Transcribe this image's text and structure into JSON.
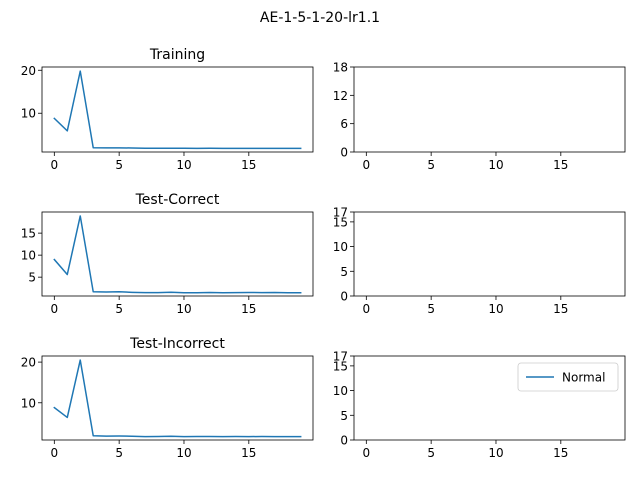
{
  "figure": {
    "suptitle": "AE-1-5-1-20-lr1.1"
  },
  "colors": {
    "series": "#1f77b4",
    "axes": "#000000",
    "background": "#ffffff"
  },
  "chart_data": [
    {
      "type": "line",
      "title": "Training",
      "xlabel": "",
      "ylabel": "",
      "xlim": [
        -0.95,
        19.95
      ],
      "ylim": [
        0.98,
        20.76
      ],
      "xticks": [
        0,
        5,
        10,
        15
      ],
      "yticks": [
        10,
        20
      ],
      "grid": false,
      "series": [
        {
          "x": [
            0,
            1,
            2,
            3,
            4,
            5,
            6,
            7,
            8,
            9,
            10,
            11,
            12,
            13,
            14,
            15,
            16,
            17,
            18,
            19
          ],
          "values": [
            8.8,
            5.9,
            19.8,
            1.98,
            1.93,
            1.95,
            1.91,
            1.85,
            1.86,
            1.85,
            1.86,
            1.83,
            1.84,
            1.82,
            1.83,
            1.82,
            1.83,
            1.82,
            1.82,
            1.81
          ]
        }
      ]
    },
    {
      "type": "line",
      "title": "",
      "xlabel": "",
      "ylabel": "",
      "xlim": [
        -0.95,
        19.95
      ],
      "ylim": [
        0,
        18
      ],
      "xticks": [
        0,
        5,
        10,
        15
      ],
      "yticks": [
        0,
        6,
        12,
        18
      ],
      "grid": false,
      "series": []
    },
    {
      "type": "line",
      "title": "Test-Correct",
      "xlabel": "",
      "ylabel": "",
      "xlim": [
        -0.95,
        19.95
      ],
      "ylim": [
        0.72,
        19.8
      ],
      "xticks": [
        0,
        5,
        10,
        15
      ],
      "yticks": [
        5,
        10,
        15
      ],
      "grid": false,
      "series": [
        {
          "x": [
            0,
            1,
            2,
            3,
            4,
            5,
            6,
            7,
            8,
            9,
            10,
            11,
            12,
            13,
            14,
            15,
            16,
            17,
            18,
            19
          ],
          "values": [
            9.0,
            5.6,
            18.9,
            1.7,
            1.62,
            1.68,
            1.55,
            1.48,
            1.5,
            1.58,
            1.46,
            1.47,
            1.52,
            1.46,
            1.48,
            1.52,
            1.48,
            1.51,
            1.46,
            1.45
          ]
        }
      ]
    },
    {
      "type": "line",
      "title": "",
      "xlabel": "",
      "ylabel": "",
      "xlim": [
        -0.95,
        19.95
      ],
      "ylim": [
        0,
        17
      ],
      "xticks": [
        0,
        5,
        10,
        15
      ],
      "yticks": [
        0,
        5,
        10,
        15,
        17
      ],
      "grid": false,
      "series": []
    },
    {
      "type": "line",
      "title": "Test-Incorrect",
      "xlabel": "",
      "ylabel": "",
      "xlim": [
        -0.95,
        19.95
      ],
      "ylim": [
        0.85,
        21.5
      ],
      "xticks": [
        0,
        5,
        10,
        15
      ],
      "yticks": [
        10,
        20
      ],
      "grid": false,
      "series": [
        {
          "x": [
            0,
            1,
            2,
            3,
            4,
            5,
            6,
            7,
            8,
            9,
            10,
            11,
            12,
            13,
            14,
            15,
            16,
            17,
            18,
            19
          ],
          "values": [
            8.8,
            6.4,
            20.5,
            1.9,
            1.8,
            1.82,
            1.78,
            1.68,
            1.7,
            1.76,
            1.68,
            1.7,
            1.7,
            1.68,
            1.7,
            1.69,
            1.7,
            1.68,
            1.68,
            1.68
          ]
        }
      ]
    },
    {
      "type": "line",
      "title": "",
      "xlabel": "",
      "ylabel": "",
      "xlim": [
        -0.95,
        19.95
      ],
      "ylim": [
        0,
        17
      ],
      "xticks": [
        0,
        5,
        10,
        15
      ],
      "yticks": [
        0,
        5,
        10,
        15,
        17
      ],
      "grid": false,
      "legend": {
        "placement": "upper-right",
        "entries": [
          {
            "label": "Normal",
            "color": "#1f77b4"
          }
        ]
      },
      "series": []
    }
  ]
}
